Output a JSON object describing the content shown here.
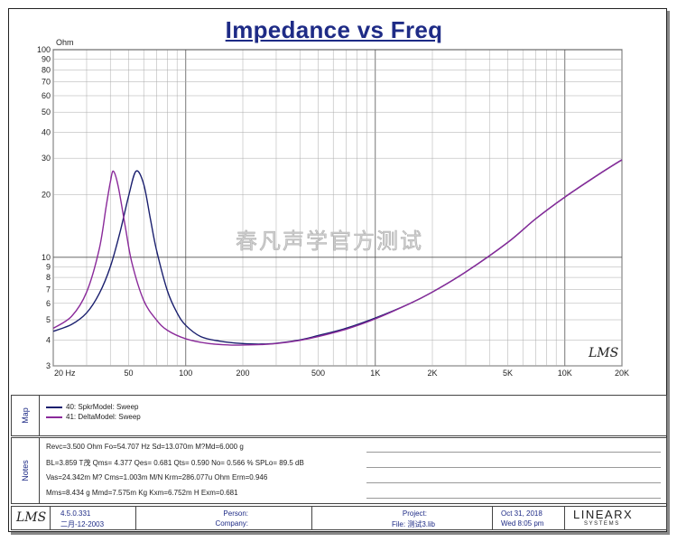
{
  "title": "Impedance vs Freq",
  "chart_data": {
    "type": "line",
    "title": "Impedance vs Freq",
    "ylabel": "Ohm",
    "xlabel": "",
    "x_scale": "log",
    "y_scale": "log",
    "xlim": [
      20,
      20000
    ],
    "ylim": [
      3,
      100
    ],
    "x_ticks": [
      20,
      50,
      100,
      200,
      500,
      1000,
      2000,
      5000,
      10000,
      20000
    ],
    "x_tick_labels": [
      "20 Hz",
      "50",
      "100",
      "200",
      "500",
      "1K",
      "2K",
      "5K",
      "10K",
      "20K"
    ],
    "y_ticks": [
      3,
      4,
      5,
      6,
      7,
      8,
      9,
      10,
      20,
      30,
      40,
      50,
      60,
      70,
      80,
      90,
      100
    ],
    "y_tick_labels": [
      "3",
      "4",
      "5",
      "6",
      "7",
      "8",
      "9",
      "10",
      "20",
      "30",
      "40",
      "50",
      "60",
      "70",
      "80",
      "90",
      "100"
    ],
    "grid": true,
    "series": [
      {
        "name": "40: SpkrModel: Sweep",
        "color": "#1a1f6e",
        "points": [
          [
            20,
            4.4
          ],
          [
            25,
            4.75
          ],
          [
            30,
            5.4
          ],
          [
            35,
            6.7
          ],
          [
            40,
            9.0
          ],
          [
            45,
            13.2
          ],
          [
            50,
            19.8
          ],
          [
            54.7,
            26.0
          ],
          [
            60,
            22.5
          ],
          [
            65,
            15.4
          ],
          [
            70,
            10.9
          ],
          [
            80,
            6.9
          ],
          [
            90,
            5.4
          ],
          [
            100,
            4.7
          ],
          [
            120,
            4.15
          ],
          [
            150,
            3.95
          ],
          [
            200,
            3.84
          ],
          [
            250,
            3.82
          ],
          [
            300,
            3.85
          ],
          [
            400,
            4.0
          ],
          [
            500,
            4.2
          ],
          [
            700,
            4.55
          ],
          [
            1000,
            5.1
          ],
          [
            1500,
            5.95
          ],
          [
            2000,
            6.8
          ],
          [
            3000,
            8.5
          ],
          [
            5000,
            11.8
          ],
          [
            7000,
            15.3
          ],
          [
            10000,
            19.5
          ],
          [
            15000,
            25.0
          ],
          [
            20000,
            29.5
          ]
        ]
      },
      {
        "name": "41: DeltaModel: Sweep",
        "color": "#8a2a9a",
        "points": [
          [
            20,
            4.55
          ],
          [
            25,
            5.2
          ],
          [
            30,
            6.8
          ],
          [
            35,
            11.0
          ],
          [
            38,
            17.5
          ],
          [
            40,
            23.0
          ],
          [
            41.5,
            26.0
          ],
          [
            44,
            22.0
          ],
          [
            48,
            14.0
          ],
          [
            52,
            9.4
          ],
          [
            60,
            6.2
          ],
          [
            70,
            5.0
          ],
          [
            80,
            4.45
          ],
          [
            100,
            4.05
          ],
          [
            130,
            3.85
          ],
          [
            170,
            3.78
          ],
          [
            200,
            3.78
          ],
          [
            250,
            3.8
          ],
          [
            300,
            3.84
          ],
          [
            400,
            3.98
          ],
          [
            500,
            4.15
          ],
          [
            700,
            4.5
          ],
          [
            1000,
            5.05
          ],
          [
            1500,
            5.95
          ],
          [
            2000,
            6.8
          ],
          [
            3000,
            8.5
          ],
          [
            5000,
            11.8
          ],
          [
            7000,
            15.3
          ],
          [
            10000,
            19.5
          ],
          [
            15000,
            25.0
          ],
          [
            20000,
            29.5
          ]
        ]
      }
    ]
  },
  "watermark": "春凡声学官方测试",
  "corner_logo": "LMS",
  "map": {
    "label": "Map",
    "items": [
      {
        "label": "40: SpkrModel: Sweep",
        "color": "#1a1f6e"
      },
      {
        "label": "41: DeltaModel: Sweep",
        "color": "#8a2a9a"
      }
    ]
  },
  "notes": {
    "label": "Notes",
    "lines": [
      "Revc=3.500 Ohm  Fo=54.707 Hz  Sd=13.070m M?Md=6.000 g",
      "BL=3.859 T茂  Qms= 4.377  Qes= 0.681  Qts= 0.590  No= 0.566 %  SPLo= 89.5 dB",
      "Vas=24.342m M? Cms=1.003m M/N  Krm=286.077u Ohm  Erm=0.946",
      "Mms=8.434 g  Mmd=7.575m Kg  Kxm=6.752m H  Exm=0.681"
    ]
  },
  "footer": {
    "logo": "LMS",
    "version": "4.5.0.331",
    "date_code": "二月-12-2003",
    "person_label": "Person:",
    "company_label": "Company:",
    "project_label": "Project:",
    "file_label": "File: 测试3.lib",
    "date": "Oct 31, 2018",
    "time": "Wed  8:05 pm",
    "brand_top": "LINEARX",
    "brand_bottom": "S Y S T E M S"
  }
}
